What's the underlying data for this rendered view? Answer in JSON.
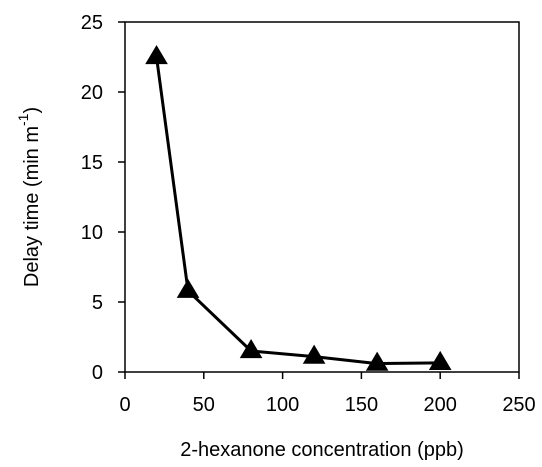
{
  "chart_data": {
    "type": "line",
    "title": "",
    "xlabel": "2-hexanone concentration (ppb)",
    "ylabel": "Delay time (min m",
    "ylabel_superscript": "-1",
    "ylabel_suffix": ")",
    "xlim": [
      0,
      250
    ],
    "ylim": [
      0,
      25
    ],
    "xticks": [
      0,
      50,
      100,
      150,
      200,
      250
    ],
    "yticks": [
      0,
      5,
      10,
      15,
      20,
      25
    ],
    "grid": false,
    "legend": "none",
    "marker": "filled-triangle",
    "line_color": "#000000",
    "series": [
      {
        "x": [
          20,
          40,
          80,
          120,
          160,
          200
        ],
        "values": [
          22.5,
          5.8,
          1.5,
          1.1,
          0.6,
          0.65
        ]
      }
    ]
  }
}
